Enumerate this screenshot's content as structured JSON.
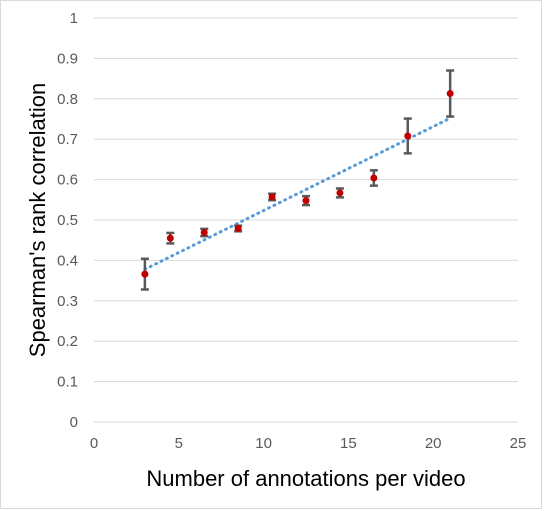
{
  "chart_data": {
    "type": "scatter",
    "xlabel": "Number of annotations per video",
    "ylabel": "Spearman's rank correlation",
    "xlim": [
      0,
      25
    ],
    "ylim": [
      0,
      1
    ],
    "x_ticks": [
      "0",
      "5",
      "10",
      "15",
      "20",
      "25"
    ],
    "y_ticks": [
      "0",
      "0.1",
      "0.2",
      "0.3",
      "0.4",
      "0.5",
      "0.6",
      "0.7",
      "0.8",
      "0.9",
      "1"
    ],
    "grid": "horizontal",
    "series": [
      {
        "points": [
          {
            "x": 3,
            "y": 0.366,
            "err": 0.038
          },
          {
            "x": 4.5,
            "y": 0.455,
            "err": 0.013
          },
          {
            "x": 6.5,
            "y": 0.469,
            "err": 0.009
          },
          {
            "x": 8.5,
            "y": 0.479,
            "err": 0.007
          },
          {
            "x": 10.5,
            "y": 0.557,
            "err": 0.008
          },
          {
            "x": 12.5,
            "y": 0.548,
            "err": 0.011
          },
          {
            "x": 14.5,
            "y": 0.567,
            "err": 0.011
          },
          {
            "x": 16.5,
            "y": 0.604,
            "err": 0.019
          },
          {
            "x": 18.5,
            "y": 0.708,
            "err": 0.043
          },
          {
            "x": 21,
            "y": 0.813,
            "err": 0.057
          }
        ]
      }
    ],
    "trendline": {
      "type": "linear",
      "x": [
        3,
        21
      ],
      "y": [
        0.378,
        0.752
      ]
    },
    "colors": {
      "point": "#c00000",
      "errorbar": "#595959",
      "trendline": "#5b9bd5",
      "grid": "#d9d9d9"
    }
  }
}
